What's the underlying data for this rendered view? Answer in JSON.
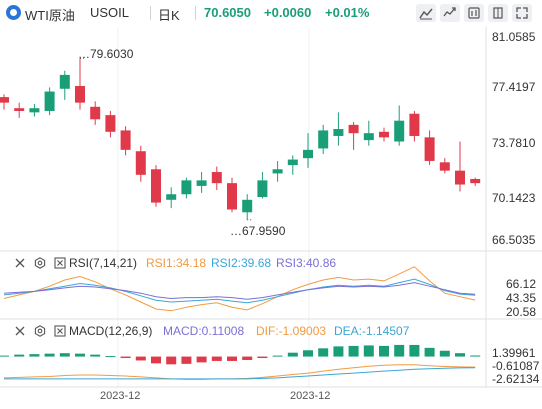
{
  "header": {
    "symbol": "WTI原油",
    "code": "USOIL",
    "period": "日K",
    "price": "70.6050",
    "change": "+0.0060",
    "change_pct": "+0.01%",
    "colors": {
      "price": "#1a9e78",
      "text": "#333333",
      "up": "#1a9e78",
      "down": "#e0394a"
    },
    "toolbar_icons": [
      "draw-line-icon",
      "compare-icon",
      "settings-icon",
      "fullscreen-icon"
    ]
  },
  "chart_data": [
    {
      "type": "candlestick",
      "title": "",
      "yticks": [
        "81.0585",
        "77.4197",
        "73.7810",
        "70.1423",
        "66.5035"
      ],
      "ylim": [
        66.5035,
        81.0585
      ],
      "xlabels": [
        "2023-12",
        "2023-12"
      ],
      "annotations": {
        "high": "79.6030",
        "low": "67.9590"
      },
      "colors": {
        "up": "#1a9e78",
        "down": "#e0394a"
      },
      "candles": [
        [
          76.8,
          76.4,
          77.0,
          75.9
        ],
        [
          76.0,
          75.8,
          76.4,
          75.3
        ],
        [
          75.7,
          76.0,
          76.3,
          75.4
        ],
        [
          75.8,
          77.2,
          77.5,
          75.5
        ],
        [
          77.4,
          78.4,
          78.7,
          76.6
        ],
        [
          77.6,
          76.4,
          79.603,
          75.9
        ],
        [
          76.1,
          75.2,
          76.5,
          74.8
        ],
        [
          75.5,
          74.3,
          75.8,
          73.9
        ],
        [
          74.4,
          73.0,
          74.7,
          72.6
        ],
        [
          72.9,
          71.2,
          73.3,
          70.7
        ],
        [
          71.6,
          69.2,
          71.9,
          68.9
        ],
        [
          69.4,
          69.8,
          70.3,
          68.8
        ],
        [
          69.8,
          70.8,
          71.0,
          69.5
        ],
        [
          70.4,
          70.8,
          71.4,
          69.9
        ],
        [
          71.4,
          70.6,
          71.8,
          70.1
        ],
        [
          70.6,
          68.7,
          71.0,
          68.5
        ],
        [
          68.5,
          69.4,
          69.8,
          67.959
        ],
        [
          69.6,
          70.8,
          71.4,
          69.5
        ],
        [
          71.3,
          71.6,
          72.2,
          70.7
        ],
        [
          71.9,
          72.3,
          72.6,
          71.2
        ],
        [
          72.4,
          73.0,
          74.2,
          71.7
        ],
        [
          73.1,
          74.4,
          74.8,
          72.7
        ],
        [
          74.0,
          74.5,
          75.7,
          73.3
        ],
        [
          74.8,
          74.2,
          75.0,
          73.0
        ],
        [
          73.7,
          74.2,
          75.1,
          73.3
        ],
        [
          74.3,
          73.9,
          74.6,
          73.6
        ],
        [
          73.6,
          75.1,
          76.2,
          73.3
        ],
        [
          75.6,
          74.0,
          75.8,
          73.6
        ],
        [
          73.9,
          72.2,
          74.4,
          71.9
        ],
        [
          72.1,
          71.5,
          72.4,
          71.3
        ],
        [
          71.5,
          70.5,
          73.6,
          70.0
        ],
        [
          70.9,
          70.6,
          71.0,
          70.4
        ]
      ]
    },
    {
      "type": "line",
      "title": "RSI(7,14,21)",
      "labels": {
        "rsi1": "RSI1:34.18",
        "rsi2": "RSI2:39.68",
        "rsi3": "RSI3:40.86"
      },
      "yticks": [
        "66.12",
        "43.35",
        "20.58"
      ],
      "ylim": [
        20.58,
        66.12
      ],
      "series": [
        {
          "name": "RSI1",
          "color": "#f39a3f",
          "values": [
            36,
            40,
            44,
            50,
            57,
            61,
            55,
            47,
            40,
            32,
            24,
            22,
            26,
            29,
            31,
            26,
            23,
            30,
            38,
            46,
            52,
            57,
            60,
            57,
            58,
            56,
            64,
            72,
            56,
            42,
            38,
            34.18
          ]
        },
        {
          "name": "RSI2",
          "color": "#3aa6d8",
          "values": [
            40,
            42,
            44,
            47,
            50,
            53,
            51,
            48,
            44,
            39,
            34,
            32,
            33,
            34,
            35,
            33,
            31,
            34,
            38,
            42,
            46,
            49,
            51,
            50,
            51,
            50,
            54,
            58,
            52,
            45,
            41,
            39.68
          ]
        },
        {
          "name": "RSI3",
          "color": "#7a6fd6",
          "values": [
            42,
            43,
            44,
            46,
            48,
            50,
            49,
            47,
            45,
            42,
            38,
            36,
            37,
            37,
            38,
            37,
            35,
            37,
            40,
            43,
            46,
            48,
            50,
            49,
            50,
            49,
            51,
            54,
            50,
            46,
            42,
            40.86
          ]
        }
      ]
    },
    {
      "type": "bar",
      "title": "MACD(12,26,9)",
      "labels": {
        "macd": "MACD:0.11008",
        "dif": "DIF:-1.09003",
        "dea": "DEA:-1.14507"
      },
      "yticks": [
        "1.39961",
        "-0.61087",
        "-2.62134"
      ],
      "ylim": [
        -2.62134,
        1.39961
      ],
      "colors": {
        "pos": "#1a9e78",
        "neg": "#e0394a"
      },
      "macd": [
        0.1,
        0.2,
        0.25,
        0.3,
        0.35,
        0.3,
        0.2,
        0.05,
        -0.15,
        -0.4,
        -0.7,
        -0.8,
        -0.75,
        -0.6,
        -0.45,
        -0.45,
        -0.35,
        -0.15,
        0.1,
        0.4,
        0.65,
        0.85,
        1.05,
        1.1,
        1.15,
        1.1,
        1.2,
        1.2,
        0.9,
        0.6,
        0.35,
        0.11008
      ],
      "dif": [
        -2.2,
        -2.15,
        -2.1,
        -2.05,
        -1.95,
        -1.9,
        -1.9,
        -1.95,
        -2.0,
        -2.1,
        -2.2,
        -2.3,
        -2.35,
        -2.35,
        -2.3,
        -2.3,
        -2.25,
        -2.15,
        -2.0,
        -1.85,
        -1.7,
        -1.5,
        -1.3,
        -1.15,
        -1.0,
        -0.9,
        -0.85,
        -0.85,
        -0.95,
        -1.02,
        -1.06,
        -1.09003
      ],
      "dea": [
        -2.3,
        -2.3,
        -2.3,
        -2.3,
        -2.3,
        -2.3,
        -2.3,
        -2.3,
        -2.3,
        -2.3,
        -2.3,
        -2.3,
        -2.3,
        -2.3,
        -2.3,
        -2.3,
        -2.3,
        -2.25,
        -2.2,
        -2.1,
        -2.0,
        -1.9,
        -1.8,
        -1.7,
        -1.6,
        -1.5,
        -1.4,
        -1.3,
        -1.25,
        -1.2,
        -1.17,
        -1.14507
      ]
    }
  ]
}
